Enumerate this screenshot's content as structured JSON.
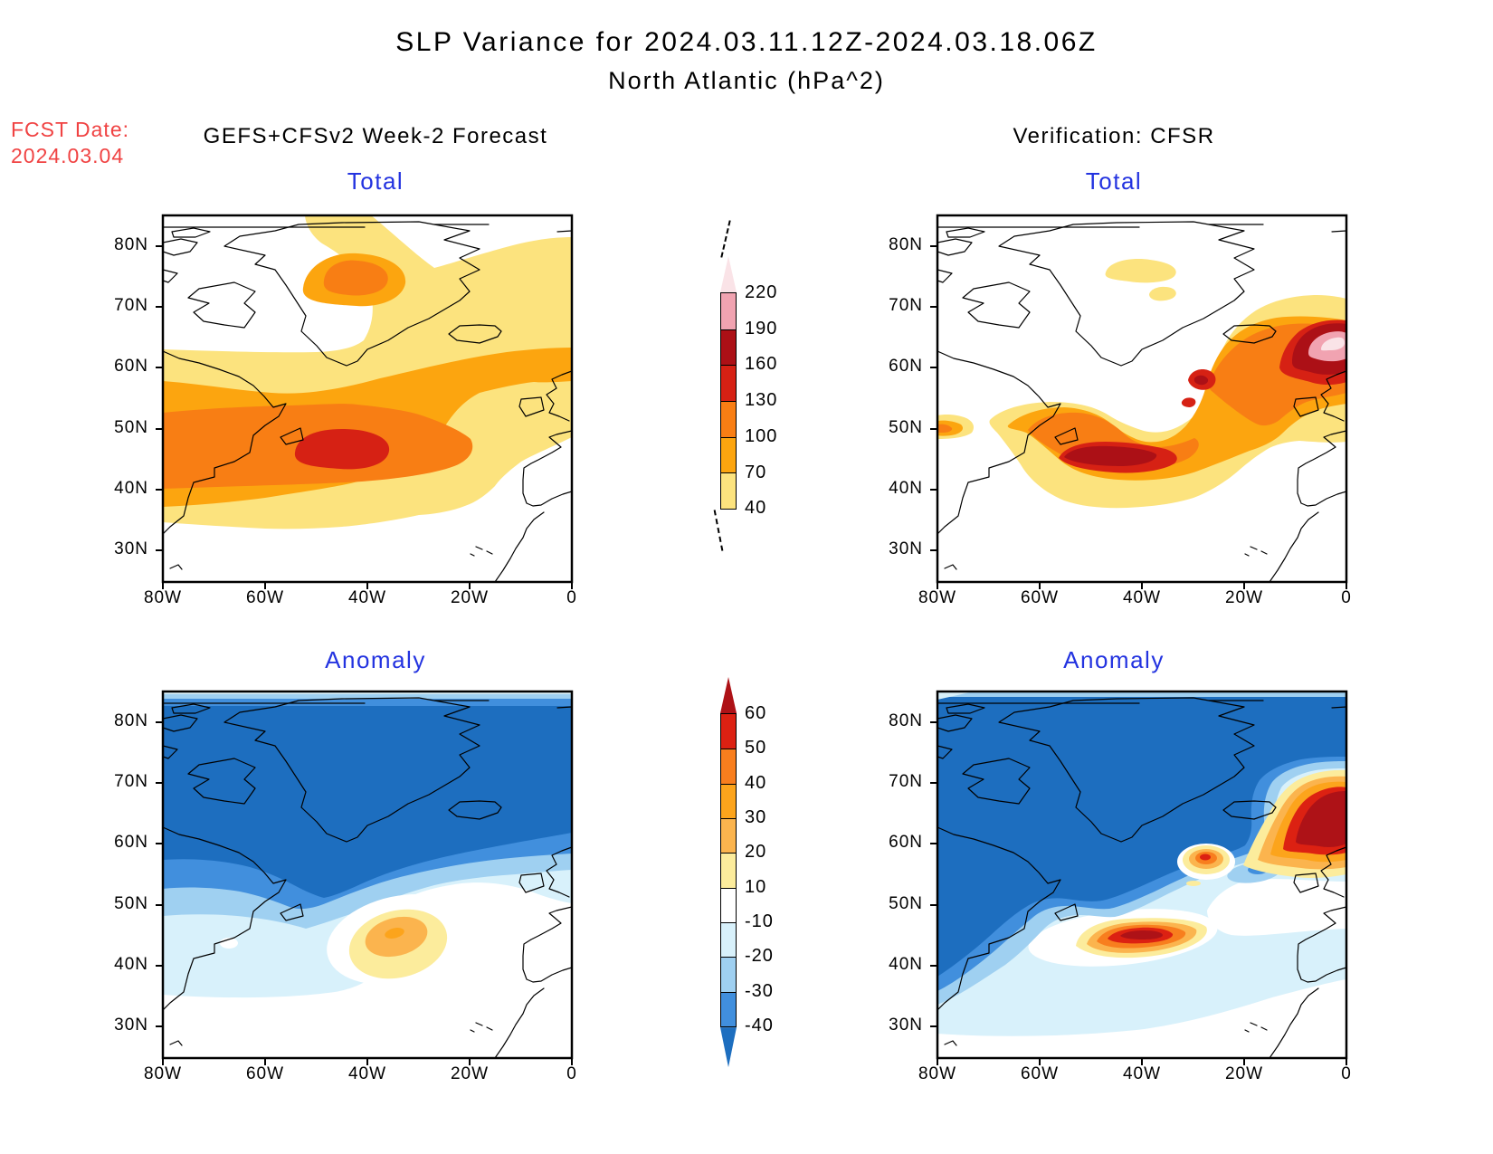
{
  "title": {
    "line1": "SLP Variance for 2024.03.11.12Z-2024.03.18.06Z",
    "line2": "North Atlantic (hPa^2)"
  },
  "fcst_date": {
    "label": "FCST Date:",
    "value": "2024.03.04",
    "color": "#f04343"
  },
  "headers": {
    "left": "GEFS+CFSv2 Week-2 Forecast",
    "right": "Verification: CFSR"
  },
  "panel_title_color": "#2333e0",
  "axes": {
    "lat_ticks": [
      "80N",
      "70N",
      "60N",
      "50N",
      "40N",
      "30N"
    ],
    "lon_ticks": [
      "80W",
      "60W",
      "40W",
      "20W",
      "0"
    ]
  },
  "palettes": {
    "total": {
      "40": "#FCE37E",
      "70": "#FCA50F",
      "100": "#F87E14",
      "130": "#D62114",
      "160": "#AC1016",
      "190": "#F1A3B1",
      "220": "#FAE3E7"
    },
    "anomaly": {
      "p10": "#FCEC9C",
      "p20": "#FBB44E",
      "p30": "#FCA41C",
      "p40": "#F87E1E",
      "p50": "#DC2112",
      "p60": "#AE1217",
      "n10": "#D8F1FB",
      "n20": "#9FD0F1",
      "n30": "#418FDD",
      "n40": "#1D6EBF",
      "white": "#FFFFFF"
    }
  },
  "colorbars": {
    "total": {
      "boundary_labels": [
        "220",
        "190",
        "160",
        "130",
        "100",
        "70",
        "40"
      ],
      "segment_colors_top_to_bottom": [
        "#F1A3B1",
        "#AC1016",
        "#D62114",
        "#F87E14",
        "#FCA50F",
        "#FCE37E"
      ],
      "above_top_color": "#FAE3E7",
      "below_bottom_color": null
    },
    "anomaly": {
      "boundary_labels": [
        "60",
        "50",
        "40",
        "30",
        "20",
        "10",
        "-10",
        "-20",
        "-30",
        "-40"
      ],
      "segment_colors_top_to_bottom": [
        "#DC2112",
        "#F87E1E",
        "#FCA41C",
        "#FBB44E",
        "#FCEC9C",
        "#FFFFFF",
        "#D8F1FB",
        "#9FD0F1",
        "#418FDD"
      ],
      "above_top_color": "#AE1217",
      "below_bottom_color": "#1D6EBF"
    }
  },
  "chart_data": [
    {
      "type": "contour_map",
      "panel": "forecast-total",
      "title": "Total",
      "dataset": "GEFS+CFSv2 Week-2 Forecast",
      "units": "hPa^2",
      "region": "North Atlantic",
      "lon_ticks": [
        "80W",
        "60W",
        "40W",
        "20W",
        "0"
      ],
      "lat_ticks": [
        "80N",
        "70N",
        "60N",
        "50N",
        "40N",
        "30N"
      ],
      "contour_levels": [
        40,
        70,
        100,
        130,
        160,
        190,
        220
      ],
      "peak_band": "130-160",
      "features": [
        "Broad >40 hPa^2 region from ~33N to ~63N across the basin and over the Nordic/Greenland sector",
        "Primary maximum 130-160 hPa^2 centered near 46N 45W south of Newfoundland",
        "Secondary maximum 100-130 hPa^2 near 74N 43W over northern Greenland",
        "White (<40) over the Canadian Arctic, northwest Greenland and south of ~33N"
      ]
    },
    {
      "type": "contour_map",
      "panel": "verification-total",
      "title": "Total",
      "dataset": "CFSR",
      "units": "hPa^2",
      "region": "North Atlantic",
      "lon_ticks": [
        "80W",
        "60W",
        "40W",
        "20W",
        "0"
      ],
      "lat_ticks": [
        "80N",
        "70N",
        "60N",
        "50N",
        "40N",
        "30N"
      ],
      "contour_levels": [
        40,
        70,
        100,
        130,
        160,
        190,
        220
      ],
      "peak_band": ">220",
      "features": [
        "Storm-track band from Newfoundland (~44N 50W) northeastward to the Norwegian Sea",
        "Maximum >220 hPa^2 near 63N 3W east of Iceland (pink/pale-pink core)",
        "Core 160-190 hPa^2 near 44N 47W and a spot near 57N 28W",
        "Weak 40-70 hPa^2 patches over central Greenland near 75N 40W"
      ]
    },
    {
      "type": "contour_map",
      "panel": "forecast-anomaly",
      "title": "Anomaly",
      "dataset": "GEFS+CFSv2 Week-2 Forecast",
      "units": "hPa^2",
      "region": "North Atlantic",
      "lon_ticks": [
        "80W",
        "60W",
        "40W",
        "20W",
        "0"
      ],
      "lat_ticks": [
        "80N",
        "70N",
        "60N",
        "50N",
        "40N",
        "30N"
      ],
      "contour_levels": [
        -40,
        -30,
        -20,
        -10,
        10,
        20,
        30,
        40,
        50,
        60
      ],
      "peak_band": "30-40",
      "features": [
        "Large negative anomaly < -40 hPa^2 over the subpolar Atlantic, Greenland and the Canadian Arctic",
        "Positive anomaly with 30-40 hPa^2 core centered near 44N 34W",
        "Near-zero (white) anomalies south of ~35N and toward western Europe"
      ]
    },
    {
      "type": "contour_map",
      "panel": "verification-anomaly",
      "title": "Anomaly",
      "dataset": "CFSR",
      "units": "hPa^2",
      "region": "North Atlantic",
      "lon_ticks": [
        "80W",
        "60W",
        "40W",
        "20W",
        "0"
      ],
      "lat_ticks": [
        "80N",
        "70N",
        "60N",
        "50N",
        "40N",
        "30N"
      ],
      "contour_levels": [
        -40,
        -30,
        -20,
        -10,
        10,
        20,
        30,
        40,
        50,
        60
      ],
      "peak_band": ">60",
      "features": [
        "Strong negative anomaly < -40 hPa^2 over the northwest Atlantic, Greenland and Nordic Seas",
        "Strong positive anomaly > 60 hPa^2 east of Iceland near 63N 5W",
        "Positive band with > 60 hPa^2 core near 44N 41W south of Newfoundland",
        "Smaller positive spot 40-50 hPa^2 near 57N 28W"
      ]
    }
  ]
}
